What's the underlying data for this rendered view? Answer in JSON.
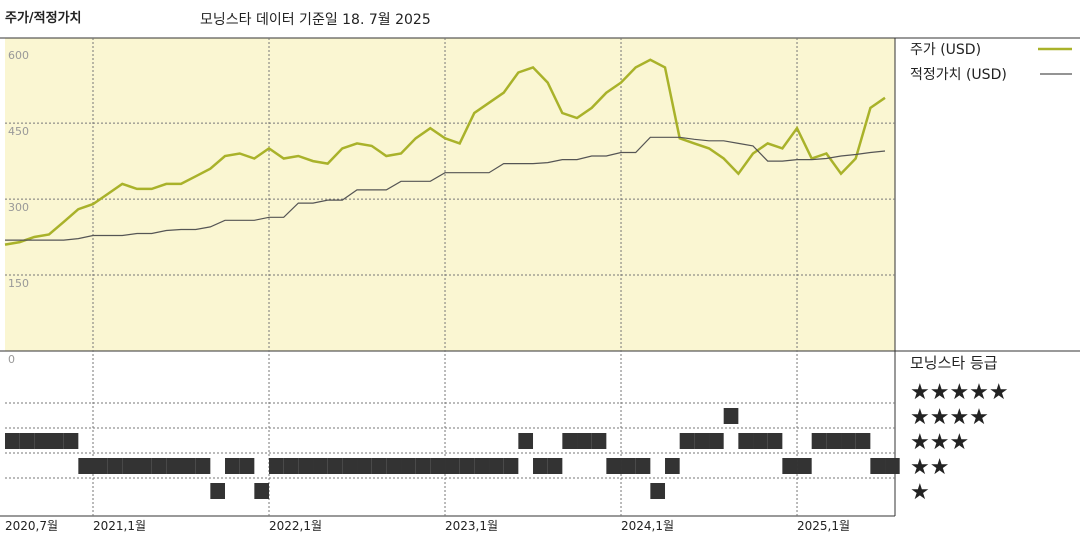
{
  "chart_data": [
    {
      "type": "line",
      "title": "주가/적정가치",
      "subtitle": "모닝스타 데이터 기준일 18. 7월 2025",
      "x": [
        "2020-07",
        "2020-08",
        "2020-09",
        "2020-10",
        "2020-11",
        "2020-12",
        "2021-01",
        "2021-02",
        "2021-03",
        "2021-04",
        "2021-05",
        "2021-06",
        "2021-07",
        "2021-08",
        "2021-09",
        "2021-10",
        "2021-11",
        "2021-12",
        "2022-01",
        "2022-02",
        "2022-03",
        "2022-04",
        "2022-05",
        "2022-06",
        "2022-07",
        "2022-08",
        "2022-09",
        "2022-10",
        "2022-11",
        "2022-12",
        "2023-01",
        "2023-02",
        "2023-03",
        "2023-04",
        "2023-05",
        "2023-06",
        "2023-07",
        "2023-08",
        "2023-09",
        "2023-10",
        "2023-11",
        "2023-12",
        "2024-01",
        "2024-02",
        "2024-03",
        "2024-04",
        "2024-05",
        "2024-06",
        "2024-07",
        "2024-08",
        "2024-09",
        "2024-10",
        "2024-11",
        "2024-12",
        "2025-01",
        "2025-02",
        "2025-03",
        "2025-04",
        "2025-05",
        "2025-06",
        "2025-07"
      ],
      "xticks": [
        {
          "value": "2020-07",
          "label": "2020,7월"
        },
        {
          "value": "2021-01",
          "label": "2021,1월"
        },
        {
          "value": "2022-01",
          "label": "2022,1월"
        },
        {
          "value": "2023-01",
          "label": "2023,1월"
        },
        {
          "value": "2024-01",
          "label": "2024,1월"
        },
        {
          "value": "2025-01",
          "label": "2025,1월"
        }
      ],
      "ylim": [
        0,
        620
      ],
      "yticks": [
        0,
        150,
        300,
        450,
        600
      ],
      "grid": true,
      "series": [
        {
          "name": "주가 (USD)",
          "color": "#a9b22a",
          "values": [
            210,
            215,
            225,
            230,
            255,
            280,
            290,
            310,
            330,
            320,
            320,
            330,
            330,
            345,
            360,
            385,
            390,
            380,
            400,
            380,
            385,
            375,
            370,
            400,
            410,
            405,
            385,
            390,
            420,
            440,
            420,
            410,
            470,
            490,
            510,
            550,
            560,
            530,
            470,
            460,
            480,
            510,
            530,
            560,
            575,
            560,
            420,
            410,
            400,
            380,
            350,
            390,
            410,
            400,
            440,
            380,
            390,
            350,
            380,
            480,
            500
          ]
        },
        {
          "name": "적정가치 (USD)",
          "color": "#555555",
          "values": [
            219,
            219,
            219,
            219,
            219,
            222,
            228,
            228,
            228,
            232,
            232,
            238,
            240,
            240,
            245,
            258,
            258,
            258,
            264,
            264,
            292,
            292,
            298,
            298,
            318,
            318,
            318,
            335,
            335,
            335,
            352,
            352,
            352,
            352,
            370,
            370,
            370,
            372,
            378,
            378,
            385,
            385,
            392,
            392,
            422,
            422,
            422,
            418,
            415,
            415,
            410,
            405,
            375,
            375,
            378,
            378,
            380,
            385,
            388,
            392,
            395
          ]
        }
      ]
    },
    {
      "type": "rating",
      "title": "모닝스타 등급",
      "levels": [
        {
          "value": 5,
          "label": "★★★★★"
        },
        {
          "value": 4,
          "label": "★★★★"
        },
        {
          "value": 3,
          "label": "★★★"
        },
        {
          "value": 2,
          "label": "★★"
        },
        {
          "value": 1,
          "label": "★"
        }
      ],
      "color": "#333333",
      "values": [
        3,
        3,
        3,
        3,
        3,
        2,
        2,
        2,
        2,
        2,
        2,
        2,
        2,
        2,
        1,
        2,
        2,
        1,
        2,
        2,
        2,
        2,
        2,
        2,
        2,
        2,
        2,
        2,
        2,
        2,
        2,
        2,
        2,
        2,
        2,
        3,
        2,
        2,
        3,
        3,
        3,
        2,
        2,
        2,
        1,
        2,
        3,
        3,
        3,
        4,
        3,
        3,
        3,
        2,
        2,
        3,
        3,
        3,
        3,
        2,
        2
      ]
    }
  ]
}
